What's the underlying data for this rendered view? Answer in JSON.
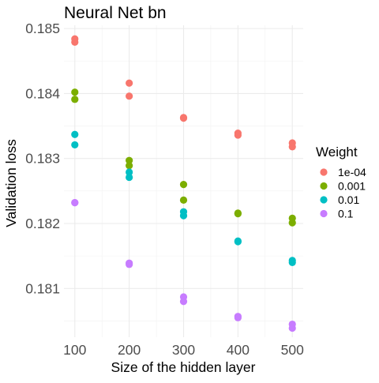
{
  "chart_data": {
    "type": "scatter",
    "title": "Neural Net bn",
    "xlabel": "Size of the hidden layer",
    "ylabel": "Validation loss",
    "x_ticks": [
      100,
      200,
      300,
      400,
      500
    ],
    "y_ticks": [
      0.181,
      0.182,
      0.183,
      0.184,
      0.185
    ],
    "y_tick_labels": [
      "0.181",
      "0.182",
      "0.183",
      "0.184",
      "0.185"
    ],
    "xlim": [
      80,
      520
    ],
    "ylim": [
      0.18025,
      0.18505
    ],
    "grid": true,
    "legend": {
      "title": "Weight",
      "position": "right"
    },
    "series": [
      {
        "name": "1e-04",
        "color": "#F8766D",
        "points": [
          [
            100,
            0.18484
          ],
          [
            100,
            0.18479
          ],
          [
            200,
            0.18416
          ],
          [
            200,
            0.18396
          ],
          [
            300,
            0.18363
          ],
          [
            300,
            0.18362
          ],
          [
            400,
            0.18339
          ],
          [
            400,
            0.18336
          ],
          [
            500,
            0.18324
          ],
          [
            500,
            0.18318
          ]
        ]
      },
      {
        "name": "0.001",
        "color": "#7CAE00",
        "points": [
          [
            100,
            0.18402
          ],
          [
            100,
            0.18391
          ],
          [
            200,
            0.18297
          ],
          [
            200,
            0.18289
          ],
          [
            300,
            0.1826
          ],
          [
            300,
            0.18236
          ],
          [
            400,
            0.18216
          ],
          [
            400,
            0.18215
          ],
          [
            500,
            0.18208
          ],
          [
            500,
            0.18201
          ]
        ]
      },
      {
        "name": "0.01",
        "color": "#00BFC4",
        "points": [
          [
            100,
            0.18337
          ],
          [
            100,
            0.18321
          ],
          [
            200,
            0.18279
          ],
          [
            200,
            0.18271
          ],
          [
            300,
            0.18218
          ],
          [
            300,
            0.18212
          ],
          [
            400,
            0.18173
          ],
          [
            400,
            0.18172
          ],
          [
            500,
            0.18143
          ],
          [
            500,
            0.1814
          ]
        ]
      },
      {
        "name": "0.1",
        "color": "#C77CFF",
        "points": [
          [
            100,
            0.18232
          ],
          [
            100,
            0.18232
          ],
          [
            200,
            0.18139
          ],
          [
            200,
            0.18137
          ],
          [
            300,
            0.18087
          ],
          [
            300,
            0.1808
          ],
          [
            400,
            0.18057
          ],
          [
            400,
            0.18055
          ],
          [
            500,
            0.18045
          ],
          [
            500,
            0.18039
          ]
        ]
      }
    ]
  }
}
